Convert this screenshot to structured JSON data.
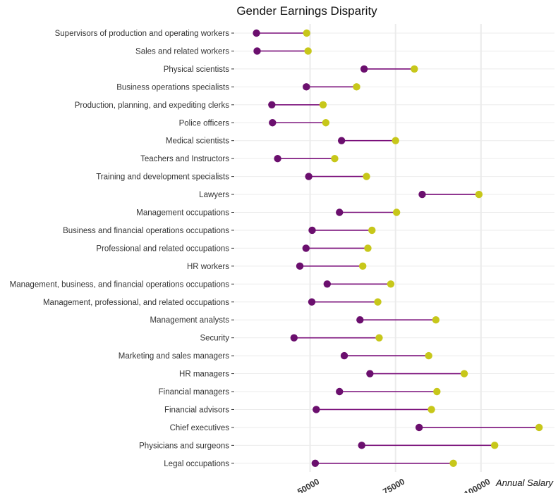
{
  "chart_data": {
    "type": "dumbbell",
    "title": "Gender Earnings Disparity",
    "xlabel": "Annual Salary",
    "ylabel": "",
    "xlim": [
      28000,
      121500
    ],
    "x_ticks": [
      50000,
      75000,
      100000
    ],
    "x_tick_labels": [
      "50000",
      "75000",
      "100000"
    ],
    "grid": true,
    "legend": "none",
    "colors": {
      "female": "#6b0f6e",
      "male": "#c7c71a",
      "segment": "#7a0f7a"
    },
    "series": [
      {
        "role": "female",
        "color": "#6b0f6e"
      },
      {
        "role": "male",
        "color": "#c7c71a"
      }
    ],
    "categories": [
      "Supervisors of production and operating workers",
      "Sales and related workers",
      "Physical scientists",
      "Business operations specialists",
      "Production, planning, and expediting clerks",
      "Police officers",
      "Medical scientists",
      "Teachers and Instructors",
      "Training and development specialists",
      "Lawyers",
      "Management occupations",
      "Business and financial operations occupations",
      "Professional and related occupations",
      "HR workers",
      "Management, business, and financial operations occupations",
      "Management, professional, and related occupations",
      "Management analysts",
      "Security",
      "Marketing and sales managers",
      "HR managers",
      "Financial managers",
      "Financial advisors",
      "Chief executives",
      "Physicians and surgeons",
      "Legal occupations"
    ],
    "female_values": [
      34300,
      34500,
      65800,
      48900,
      38800,
      39000,
      59200,
      40500,
      49600,
      82800,
      58600,
      50600,
      48800,
      47000,
      55000,
      50500,
      64600,
      45300,
      60000,
      67500,
      58600,
      51800,
      81900,
      65100,
      51500
    ],
    "male_values": [
      49000,
      49400,
      80500,
      63600,
      53800,
      54600,
      75000,
      57200,
      66500,
      99400,
      75300,
      68100,
      66900,
      65400,
      73600,
      69800,
      86800,
      70200,
      84700,
      95100,
      87100,
      85500,
      117000,
      104000,
      91900
    ]
  }
}
